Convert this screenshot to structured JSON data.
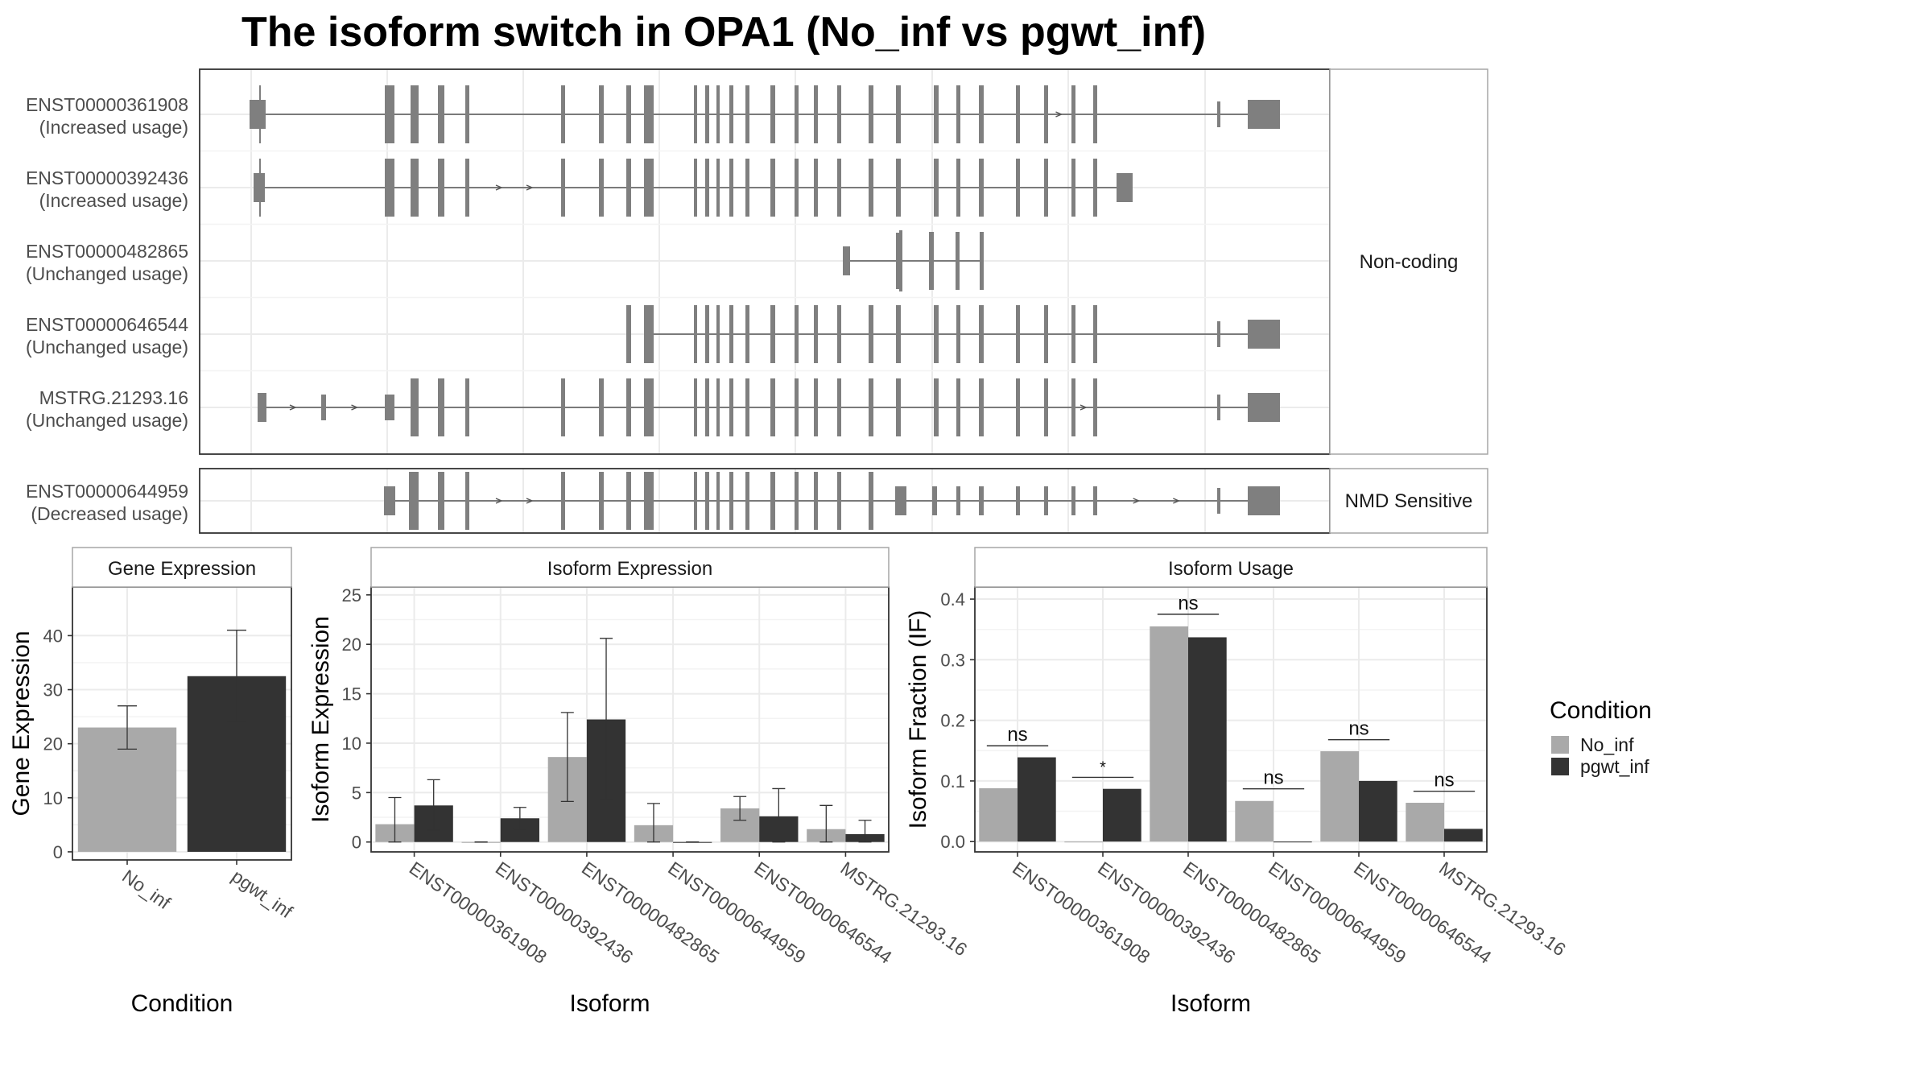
{
  "title": "The isoform switch in OPA1 (No_inf vs pgwt_inf)",
  "colors": {
    "no_inf": "#a9a9a9",
    "pgwt_inf": "#333333",
    "exon": "#7f7f7f",
    "intron": "#555555",
    "grid": "#ebebeb",
    "border": "#333333",
    "strip_border": "#a6a6a6"
  },
  "structure": {
    "panels": [
      {
        "label": "Non-coding",
        "rows": [
          {
            "id": "ENST00000361908",
            "usage": "(Increased usage)",
            "template": "full",
            "first": 0,
            "last": 31,
            "endType": "big",
            "leadSmall": true,
            "arrowSegs": [
              [
                0,
                1
              ],
              [
                25,
                26
              ]
            ]
          },
          {
            "id": "ENST00000392436",
            "usage": "(Increased usage)",
            "template": "full",
            "first": 0,
            "last": 24,
            "endType": "mid",
            "leadSmall": true,
            "arrowSegs": [
              [
                0,
                1
              ],
              [
                5,
                6
              ]
            ]
          },
          {
            "id": "ENST00000482865",
            "usage": "(Unchanged usage)",
            "template": "s482",
            "first": 0,
            "last": 5,
            "endType": "none",
            "leadSmall": false,
            "arrowSegs": []
          },
          {
            "id": "ENST00000646544",
            "usage": "(Unchanged usage)",
            "template": "full",
            "first": 8,
            "last": 31,
            "endType": "big",
            "leadSmall": false,
            "arrowSegs": [
              [
                25,
                26
              ]
            ]
          },
          {
            "id": "MSTRG.21293.16",
            "usage": "(Unchanged usage)",
            "template": "mstrg",
            "first": 0,
            "last": 33,
            "endType": "big",
            "leadSmall": false,
            "arrowSegs": [
              [
                0,
                1
              ],
              [
                1,
                2
              ],
              [
                26,
                27
              ]
            ]
          }
        ]
      },
      {
        "label": "NMD Sensitive",
        "rows": [
          {
            "id": "ENST00000644959",
            "usage": "(Decreased usage)",
            "template": "nmd",
            "first": 0,
            "last": 32,
            "endType": "big",
            "leadSmall": false,
            "arrowSegs": [
              [
                4,
                5
              ],
              [
                26,
                27
              ]
            ]
          }
        ]
      }
    ]
  },
  "chart_data": [
    {
      "type": "bar",
      "title": "Gene Expression",
      "xlabel": "Condition",
      "ylabel": "Gene Expression",
      "categories": [
        "No_inf",
        "pgwt_inf"
      ],
      "values": [
        23,
        32.5
      ],
      "errors": [
        [
          19,
          27
        ],
        [
          24,
          41
        ]
      ],
      "ylim": [
        -1.5,
        49
      ],
      "yticks": [
        0,
        10,
        20,
        30,
        40
      ],
      "grid": true
    },
    {
      "type": "bar",
      "title": "Isoform Expression",
      "xlabel": "Isoform",
      "ylabel": "Isoform Expression",
      "categories": [
        "ENST00000361908",
        "ENST00000392436",
        "ENST00000482865",
        "ENST00000644959",
        "ENST00000646544",
        "MSTRG.21293.16"
      ],
      "series": [
        {
          "name": "No_inf",
          "values": [
            1.8,
            0,
            8.6,
            1.7,
            3.4,
            1.3
          ],
          "errors": [
            [
              0,
              4.5
            ],
            [
              0,
              0
            ],
            [
              4.1,
              13.1
            ],
            [
              0,
              3.9
            ],
            [
              2.2,
              4.6
            ],
            [
              0,
              3.7
            ]
          ]
        },
        {
          "name": "pgwt_inf",
          "values": [
            3.7,
            2.4,
            12.4,
            0,
            2.6,
            0.8
          ],
          "errors": [
            [
              1.2,
              6.3
            ],
            [
              1.3,
              3.5
            ],
            [
              4.3,
              20.6
            ],
            [
              0,
              0
            ],
            [
              0,
              5.4
            ],
            [
              0,
              2.2
            ]
          ]
        }
      ],
      "ylim": [
        -1,
        25.8
      ],
      "yticks": [
        0,
        5,
        10,
        15,
        20,
        25
      ],
      "grid": true
    },
    {
      "type": "bar",
      "title": "Isoform Usage",
      "xlabel": "Isoform",
      "ylabel": "Isoform Fraction (IF)",
      "categories": [
        "ENST00000361908",
        "ENST00000392436",
        "ENST00000482865",
        "ENST00000644959",
        "ENST00000646544",
        "MSTRG.21293.16"
      ],
      "series": [
        {
          "name": "No_inf",
          "values": [
            0.088,
            0,
            0.355,
            0.067,
            0.149,
            0.064
          ]
        },
        {
          "name": "pgwt_inf",
          "values": [
            0.139,
            0.087,
            0.337,
            0,
            0.1,
            0.021
          ]
        }
      ],
      "significance": [
        "ns",
        "*",
        "ns",
        "ns",
        "ns",
        "ns"
      ],
      "sigHeights": [
        0.158,
        0.106,
        0.375,
        0.087,
        0.168,
        0.083
      ],
      "ylim": [
        -0.017,
        0.42
      ],
      "yticks": [
        0.0,
        0.1,
        0.2,
        0.3,
        0.4
      ],
      "ytickLabels": [
        "0.0",
        "0.1",
        "0.2",
        "0.3",
        "0.4"
      ],
      "grid": true
    }
  ],
  "legend": {
    "title": "Condition",
    "items": [
      "No_inf",
      "pgwt_inf"
    ]
  }
}
